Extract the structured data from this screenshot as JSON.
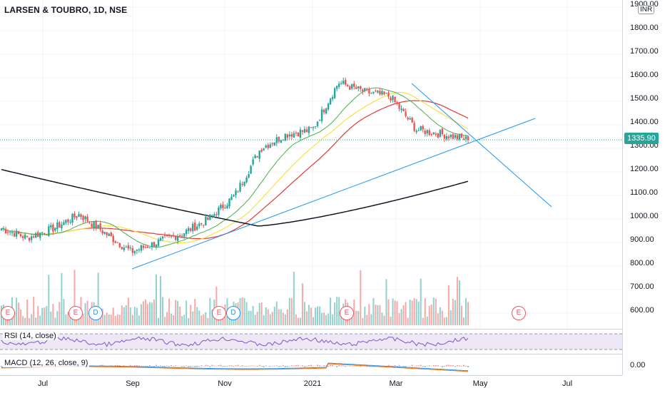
{
  "header": {
    "title": "LARSEN & TOUBRO, 1D, NSE"
  },
  "price_axis": {
    "currency": "INR",
    "ticks": [
      "1900.00",
      "1800.00",
      "1700.00",
      "1600.00",
      "1500.00",
      "1400.00",
      "1300.00",
      "1200.00",
      "1100.00",
      "1000.00",
      "900.00",
      "800.00",
      "700.00",
      "600.00"
    ],
    "last_price": "1335.90"
  },
  "time_axis": {
    "labels": [
      "Jul",
      "Sep",
      "Nov",
      "2021",
      "Mar",
      "May",
      "Jul"
    ]
  },
  "indicators": {
    "rsi_label": "RSI (14, close)",
    "macd_label": "MACD (12, 26, close, 9)",
    "macd_tick": "0.00"
  },
  "events": [
    {
      "kind": "E"
    },
    {
      "kind": "E"
    },
    {
      "kind": "D"
    },
    {
      "kind": "E"
    },
    {
      "kind": "D"
    },
    {
      "kind": "E"
    },
    {
      "kind": "E"
    }
  ],
  "colors": {
    "up": "#26a69a",
    "down": "#ef5350",
    "ma_black": "#131722",
    "ma_red": "#e53935",
    "ma_yellow": "#f7e14a",
    "ma_green": "#4caf50",
    "trend": "#2196f3",
    "rsi": "#7e57c2",
    "rsi_band": "#ede7f6",
    "macd": "#2196f3",
    "signal": "#ff6d00"
  },
  "chart_data": {
    "type": "candlestick",
    "symbol": "LARSEN & TOUBRO",
    "interval": "1D",
    "exchange": "NSE",
    "ylim": [
      540,
      1930
    ],
    "anchor_closes": [
      [
        "Jun",
        960
      ],
      [
        "Jul",
        920
      ],
      [
        "Aug",
        960
      ],
      [
        "Aug",
        1020
      ],
      [
        "Sep",
        940
      ],
      [
        "Sep",
        860
      ],
      [
        "Oct",
        900
      ],
      [
        "Nov",
        940
      ],
      [
        "Nov",
        1000
      ],
      [
        "Dec",
        1100
      ],
      [
        "Dec",
        1300
      ],
      [
        "2021",
        1360
      ],
      [
        "Jan",
        1380
      ],
      [
        "Feb",
        1580
      ],
      [
        "Feb",
        1540
      ],
      [
        "Mar",
        1520
      ],
      [
        "Mar",
        1380
      ],
      [
        "Apr",
        1360
      ],
      [
        "Apr",
        1335.9
      ]
    ]
  }
}
